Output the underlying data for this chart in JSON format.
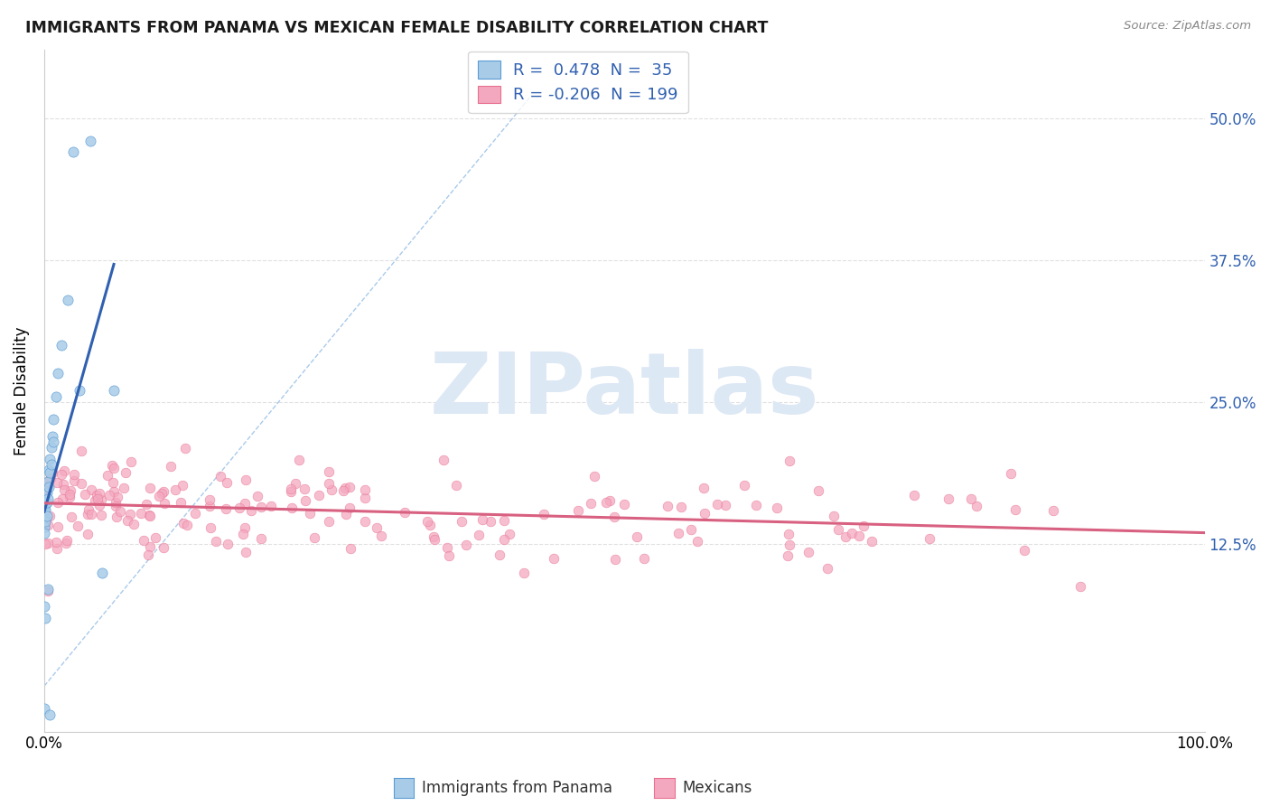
{
  "title": "IMMIGRANTS FROM PANAMA VS MEXICAN FEMALE DISABILITY CORRELATION CHART",
  "source": "Source: ZipAtlas.com",
  "ylabel": "Female Disability",
  "xlim": [
    0.0,
    1.0
  ],
  "ylim": [
    -0.04,
    0.56
  ],
  "yticks": [
    0.125,
    0.25,
    0.375,
    0.5
  ],
  "ytick_labels": [
    "12.5%",
    "25.0%",
    "37.5%",
    "50.0%"
  ],
  "xtick_labels": [
    "0.0%",
    "100.0%"
  ],
  "legend_r_panama": "0.478",
  "legend_n_panama": "35",
  "legend_r_mexican": "-0.206",
  "legend_n_mexican": "199",
  "color_panama_fill": "#a8cce8",
  "color_mexican_fill": "#f4a8c0",
  "color_panama_edge": "#5b9bd5",
  "color_mexican_edge": "#e87090",
  "color_panama_line": "#3060b0",
  "color_mexican_line": "#d86080",
  "color_diag": "#a0c4e8",
  "background_color": "#ffffff",
  "grid_color": "#e0e0e0",
  "watermark_text": "ZIPatlas",
  "watermark_color": "#dde8f5",
  "legend_text_color": "#3060b0",
  "legend_n_color": "#202020"
}
